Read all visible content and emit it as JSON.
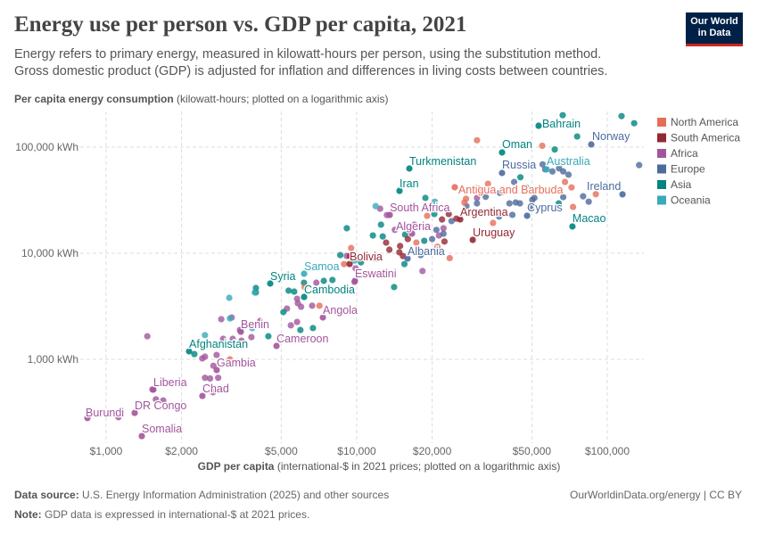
{
  "header": {
    "title": "Energy use per person vs. GDP per capita, 2021",
    "subtitle": "Energy refers to primary energy, measured in kilowatt-hours per person, using the substitution method. Gross domestic product (GDP) is adjusted for inflation and differences in living costs between countries.",
    "logo": "Our World in Data"
  },
  "footer": {
    "source_label": "Data source:",
    "source": "U.S. Energy Information Administration (2025) and other sources",
    "note_label": "Note:",
    "note": "GDP data is expressed in international-$ at 2021 prices.",
    "credit": "OurWorldinData.org/energy | CC BY"
  },
  "chart_data": {
    "type": "scatter",
    "title": "Energy use per person vs. GDP per capita, 2021",
    "ylabel_bold": "Per capita energy consumption",
    "ylabel_rest": " (kilowatt-hours; plotted on a logarithmic axis)",
    "xlabel_bold": "GDP per capita",
    "xlabel_rest": " (international-$ in 2021 prices; plotted on a logarithmic axis)",
    "x_scale": "log",
    "y_scale": "log",
    "xlim": [
      780,
      140000
    ],
    "ylim": [
      170,
      230000
    ],
    "x_ticks": [
      {
        "v": 1000,
        "label": "$1,000"
      },
      {
        "v": 2000,
        "label": "$2,000"
      },
      {
        "v": 5000,
        "label": "$5,000"
      },
      {
        "v": 10000,
        "label": "$10,000"
      },
      {
        "v": 20000,
        "label": "$20,000"
      },
      {
        "v": 50000,
        "label": "$50,000"
      },
      {
        "v": 100000,
        "label": "$100,000"
      }
    ],
    "y_ticks": [
      {
        "v": 1000,
        "label": "1,000 kWh"
      },
      {
        "v": 10000,
        "label": "10,000 kWh"
      },
      {
        "v": 100000,
        "label": "100,000 kWh"
      }
    ],
    "grid": true,
    "legend_placement": "right",
    "legend": [
      {
        "key": "NA",
        "name": "North America",
        "color": "#E56E5A"
      },
      {
        "key": "SA",
        "name": "South America",
        "color": "#932834"
      },
      {
        "key": "AF",
        "name": "Africa",
        "color": "#A2559C"
      },
      {
        "key": "EU",
        "name": "Europe",
        "color": "#4C6A9C"
      },
      {
        "key": "AS",
        "name": "Asia",
        "color": "#00847E"
      },
      {
        "key": "OC",
        "name": "Oceania",
        "color": "#38AABA"
      }
    ],
    "labeled_points": [
      {
        "name": "Burundi",
        "gdp": 842,
        "energy": 280,
        "region": "AF"
      },
      {
        "name": "Somalia",
        "gdp": 1388,
        "energy": 189,
        "region": "AF"
      },
      {
        "name": "DR Congo",
        "gdp": 1300,
        "energy": 313,
        "region": "AF"
      },
      {
        "name": "Liberia",
        "gdp": 1544,
        "energy": 518,
        "region": "AF"
      },
      {
        "name": "Chad",
        "gdp": 2422,
        "energy": 452,
        "region": "AF"
      },
      {
        "name": "Gambia",
        "gdp": 2762,
        "energy": 793,
        "region": "AF"
      },
      {
        "name": "Afghanistan",
        "gdp": 2143,
        "energy": 1190,
        "region": "AS"
      },
      {
        "name": "Cameroon",
        "gdp": 4786,
        "energy": 1337,
        "region": "AF"
      },
      {
        "name": "Benin",
        "gdp": 3447,
        "energy": 1821,
        "region": "AF"
      },
      {
        "name": "Angola",
        "gdp": 7328,
        "energy": 2483,
        "region": "AF"
      },
      {
        "name": "Cambodia",
        "gdp": 6166,
        "energy": 3873,
        "region": "AS"
      },
      {
        "name": "Syria",
        "gdp": 4517,
        "energy": 5178,
        "region": "AS"
      },
      {
        "name": "Samoa",
        "gdp": 6166,
        "energy": 6410,
        "region": "OC"
      },
      {
        "name": "Eswatini",
        "gdp": 9836,
        "energy": 5488,
        "region": "AF"
      },
      {
        "name": "Bolivia",
        "gdp": 9370,
        "energy": 7925,
        "region": "SA"
      },
      {
        "name": "Albania",
        "gdp": 15960,
        "energy": 8912,
        "region": "EU"
      },
      {
        "name": "Algeria",
        "gdp": 16630,
        "energy": 15310,
        "region": "AF"
      },
      {
        "name": "South Africa",
        "gdp": 13550,
        "energy": 22960,
        "region": "AF"
      },
      {
        "name": "Iran",
        "gdp": 14820,
        "energy": 38730,
        "region": "AS"
      },
      {
        "name": "Turkmenistan",
        "gdp": 16220,
        "energy": 62870,
        "region": "AS"
      },
      {
        "name": "Argentina",
        "gdp": 25880,
        "energy": 20850,
        "region": "SA"
      },
      {
        "name": "Uruguay",
        "gdp": 29040,
        "energy": 13360,
        "region": "SA"
      },
      {
        "name": "Antigua and Barbuda",
        "gdp": 24620,
        "energy": 41880,
        "region": "NA"
      },
      {
        "name": "Russia",
        "gdp": 38020,
        "energy": 57050,
        "region": "EU"
      },
      {
        "name": "Oman",
        "gdp": 38020,
        "energy": 89100,
        "region": "AS"
      },
      {
        "name": "Bahrain",
        "gdp": 53200,
        "energy": 159000,
        "region": "AS"
      },
      {
        "name": "Norway",
        "gdp": 86300,
        "energy": 106000,
        "region": "EU"
      },
      {
        "name": "Australia",
        "gdp": 57300,
        "energy": 61700,
        "region": "OC"
      },
      {
        "name": "Ireland",
        "gdp": 115000,
        "energy": 35900,
        "region": "EU"
      },
      {
        "name": "Cyprus",
        "gdp": 47860,
        "energy": 22550,
        "region": "EU"
      },
      {
        "name": "Macao",
        "gdp": 72600,
        "energy": 17870,
        "region": "AS"
      }
    ],
    "points": [
      [
        1460,
        1650,
        "AF"
      ],
      [
        1120,
        285,
        "AF"
      ],
      [
        1530,
        520,
        "AF"
      ],
      [
        1580,
        420,
        "AF"
      ],
      [
        1690,
        410,
        "AF"
      ],
      [
        2480,
        670,
        "AF"
      ],
      [
        2600,
        660,
        "AF"
      ],
      [
        2800,
        670,
        "AF"
      ],
      [
        2670,
        490,
        "AF"
      ],
      [
        2680,
        870,
        "AF"
      ],
      [
        2480,
        1060,
        "AF"
      ],
      [
        2420,
        1020,
        "AF"
      ],
      [
        2760,
        1100,
        "AF"
      ],
      [
        2930,
        1560,
        "AF"
      ],
      [
        3200,
        1560,
        "AF"
      ],
      [
        3420,
        1890,
        "AF"
      ],
      [
        3170,
        2480,
        "AF"
      ],
      [
        2880,
        2390,
        "AF"
      ],
      [
        3800,
        1620,
        "AF"
      ],
      [
        3470,
        1500,
        "AF"
      ],
      [
        4120,
        2300,
        "AF"
      ],
      [
        5460,
        2090,
        "AF"
      ],
      [
        5780,
        2250,
        "AF"
      ],
      [
        6000,
        3130,
        "AF"
      ],
      [
        5820,
        3380,
        "AF"
      ],
      [
        6640,
        3200,
        "AF"
      ],
      [
        5270,
        3010,
        "AF"
      ],
      [
        5780,
        3720,
        "AF"
      ],
      [
        6900,
        5280,
        "AF"
      ],
      [
        9800,
        5380,
        "AF"
      ],
      [
        9900,
        7200,
        "AF"
      ],
      [
        9130,
        9430,
        "AF"
      ],
      [
        18300,
        6800,
        "AF"
      ],
      [
        12400,
        26300,
        "AF"
      ],
      [
        13200,
        22900,
        "AF"
      ],
      [
        14200,
        16600,
        "AF"
      ],
      [
        17000,
        18600,
        "AF"
      ],
      [
        22200,
        17200,
        "AF"
      ],
      [
        21300,
        14700,
        "AF"
      ],
      [
        30200,
        33200,
        "AF"
      ],
      [
        2250,
        1120,
        "AS"
      ],
      [
        4440,
        1650,
        "AS"
      ],
      [
        5100,
        2790,
        "AS"
      ],
      [
        5960,
        1890,
        "AS"
      ],
      [
        6690,
        1970,
        "AS"
      ],
      [
        3960,
        4700,
        "AS"
      ],
      [
        3960,
        4270,
        "AS"
      ],
      [
        5350,
        4440,
        "AS"
      ],
      [
        5630,
        4350,
        "AS"
      ],
      [
        6160,
        5270,
        "AS"
      ],
      [
        7390,
        5490,
        "AS"
      ],
      [
        8000,
        5600,
        "AS"
      ],
      [
        9130,
        17200,
        "AS"
      ],
      [
        8600,
        9600,
        "AS"
      ],
      [
        10400,
        8200,
        "AS"
      ],
      [
        11600,
        14700,
        "AS"
      ],
      [
        12500,
        18600,
        "AS"
      ],
      [
        12700,
        14400,
        "AS"
      ],
      [
        11900,
        8900,
        "AS"
      ],
      [
        14100,
        4800,
        "AS"
      ],
      [
        15500,
        7900,
        "AS"
      ],
      [
        15600,
        15000,
        "AS"
      ],
      [
        18600,
        13100,
        "AS"
      ],
      [
        20400,
        23400,
        "AS"
      ],
      [
        18800,
        33200,
        "AS"
      ],
      [
        30200,
        38800,
        "AS"
      ],
      [
        66400,
        200000,
        "AS"
      ],
      [
        75800,
        126000,
        "AS"
      ],
      [
        114000,
        196000,
        "AS"
      ],
      [
        128000,
        168000,
        "AS"
      ],
      [
        61700,
        95000,
        "AS"
      ],
      [
        64000,
        29500,
        "AS"
      ],
      [
        45000,
        52000,
        "AS"
      ],
      [
        18000,
        9600,
        "EU"
      ],
      [
        20000,
        13600,
        "EU"
      ],
      [
        20800,
        16600,
        "EU"
      ],
      [
        22200,
        15300,
        "EU"
      ],
      [
        23900,
        20100,
        "EU"
      ],
      [
        27400,
        27800,
        "EU"
      ],
      [
        30200,
        29500,
        "EU"
      ],
      [
        32700,
        34000,
        "EU"
      ],
      [
        38200,
        38000,
        "EU"
      ],
      [
        40700,
        29500,
        "EU"
      ],
      [
        43100,
        30100,
        "EU"
      ],
      [
        44800,
        29500,
        "EU"
      ],
      [
        50200,
        31900,
        "EU"
      ],
      [
        49400,
        27300,
        "EU"
      ],
      [
        51200,
        33200,
        "EU"
      ],
      [
        55200,
        68800,
        "EU"
      ],
      [
        56500,
        61700,
        "EU"
      ],
      [
        60400,
        59000,
        "EU"
      ],
      [
        64200,
        63000,
        "EU"
      ],
      [
        66700,
        59000,
        "EU"
      ],
      [
        70000,
        55000,
        "EU"
      ],
      [
        66700,
        33800,
        "EU"
      ],
      [
        80100,
        34400,
        "EU"
      ],
      [
        84300,
        30600,
        "EU"
      ],
      [
        134000,
        67700,
        "EU"
      ],
      [
        37200,
        37100,
        "EU"
      ],
      [
        42500,
        46900,
        "EU"
      ],
      [
        41800,
        23000,
        "EU"
      ],
      [
        37000,
        22200,
        "EU"
      ],
      [
        34100,
        24800,
        "EU"
      ],
      [
        30200,
        116000,
        "NA"
      ],
      [
        30700,
        40400,
        "NA"
      ],
      [
        33400,
        45200,
        "NA"
      ],
      [
        26900,
        30100,
        "NA"
      ],
      [
        27300,
        32600,
        "NA"
      ],
      [
        19100,
        22500,
        "NA"
      ],
      [
        21000,
        11500,
        "NA"
      ],
      [
        23500,
        9000,
        "NA"
      ],
      [
        17300,
        12600,
        "NA"
      ],
      [
        9500,
        11200,
        "NA"
      ],
      [
        8900,
        7900,
        "NA"
      ],
      [
        6200,
        4800,
        "NA"
      ],
      [
        7100,
        3200,
        "NA"
      ],
      [
        3120,
        1000,
        "NA"
      ],
      [
        55000,
        103000,
        "NA"
      ],
      [
        67800,
        47000,
        "NA"
      ],
      [
        72000,
        41700,
        "NA"
      ],
      [
        66100,
        70700,
        "NA"
      ],
      [
        90000,
        36000,
        "NA"
      ],
      [
        73000,
        27300,
        "NA"
      ],
      [
        35000,
        19300,
        "NA"
      ],
      [
        16000,
        13600,
        "SA"
      ],
      [
        14800,
        10200,
        "SA"
      ],
      [
        15300,
        9400,
        "SA"
      ],
      [
        14900,
        11700,
        "SA"
      ],
      [
        13500,
        10800,
        "SA"
      ],
      [
        22400,
        12900,
        "SA"
      ],
      [
        25000,
        21200,
        "SA"
      ],
      [
        23300,
        23400,
        "SA"
      ],
      [
        21900,
        20800,
        "SA"
      ],
      [
        9400,
        9400,
        "SA"
      ],
      [
        13100,
        12600,
        "SA"
      ],
      [
        3100,
        3800,
        "OC"
      ],
      [
        3120,
        2430,
        "OC"
      ],
      [
        3920,
        4270,
        "OC"
      ],
      [
        3830,
        1970,
        "OC"
      ],
      [
        2480,
        1690,
        "OC"
      ],
      [
        9800,
        8540,
        "OC"
      ],
      [
        11900,
        27800,
        "OC"
      ],
      [
        20500,
        30600,
        "OC"
      ],
      [
        47500,
        41700,
        "OC"
      ]
    ]
  }
}
